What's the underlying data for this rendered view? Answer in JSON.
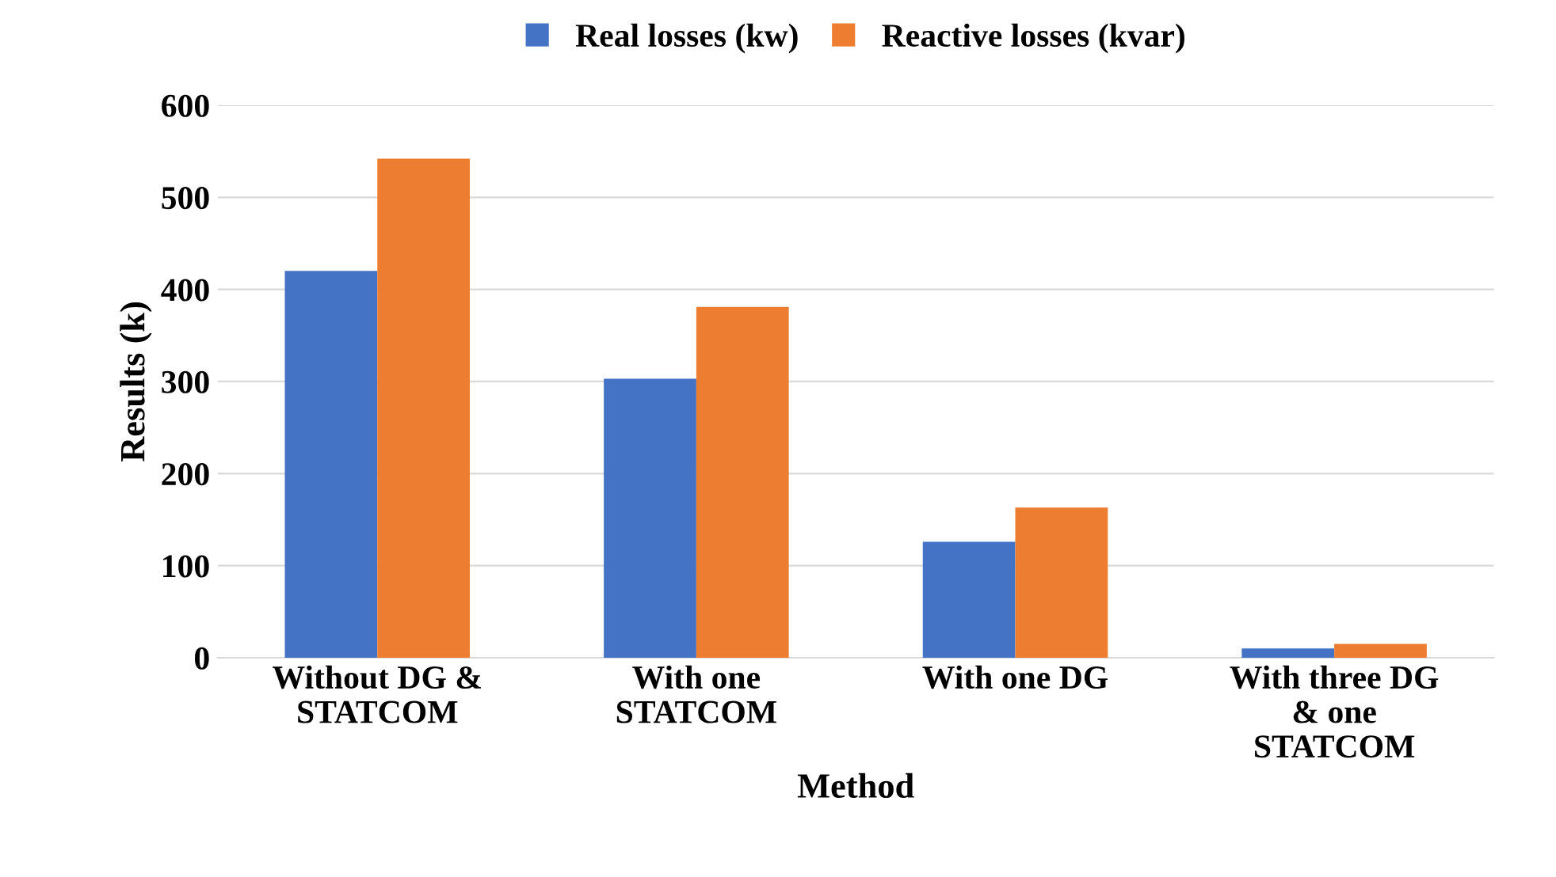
{
  "chart_data": {
    "type": "bar",
    "xlabel": "Method",
    "ylabel": "Results (k)",
    "categories": [
      "Without DG &\nSTATCOM",
      "With one\nSTATCOM",
      "With one DG",
      "With three DG\n& one\nSTATCOM"
    ],
    "series": [
      {
        "name": "Real losses (kw)",
        "color": "#4472c4",
        "values": [
          420,
          303,
          126,
          10
        ]
      },
      {
        "name": "Reactive losses (kvar)",
        "color": "#ed7d31",
        "values": [
          542,
          381,
          163,
          15
        ]
      }
    ],
    "ylim": [
      0,
      600
    ],
    "yticks": [
      0,
      100,
      200,
      300,
      400,
      500,
      600
    ],
    "grid": "y",
    "legend": "top"
  }
}
